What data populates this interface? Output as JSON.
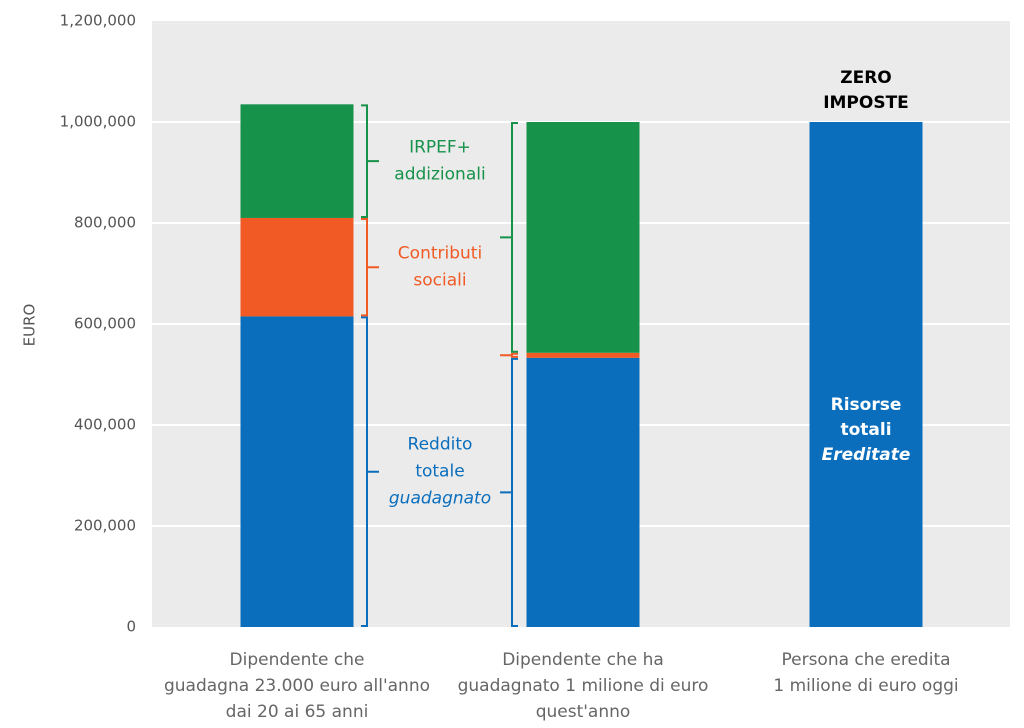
{
  "chart_data": {
    "type": "stacked_bar",
    "y_label": "EURO",
    "categories": [
      [
        "Dipendente che",
        "guadagna 23.000 euro all'anno",
        "dai 20 ai 65 anni"
      ],
      [
        "Dipendente che ha",
        "guadagnato 1 milione di euro",
        "quest'anno"
      ],
      [
        "Persona che eredita",
        "1 milione di euro oggi"
      ]
    ],
    "series": [
      {
        "color": "#0a6ebd",
        "values": [
          615000,
          533000,
          1000000
        ],
        "label_lines": [
          "Reddito",
          "totale",
          "guadagnato"
        ],
        "italic_last": true
      },
      {
        "color": "#f15a24",
        "values": [
          195000,
          10000,
          null
        ],
        "label_lines": [
          "Contributi",
          "sociali"
        ],
        "italic_last": false
      },
      {
        "color": "#16924a",
        "values": [
          225000,
          457000,
          null
        ],
        "label_lines": [
          "IRPEF+",
          "addizionali"
        ],
        "italic_last": false
      }
    ],
    "bar_annotation": {
      "above": [
        "ZERO",
        "IMPOSTE"
      ],
      "inside": [
        "Risorse",
        "totali",
        "Ereditate"
      ],
      "italic_last": true
    },
    "ylim": [
      0,
      1200000
    ],
    "yticks": [
      0,
      {
        "value": 200000,
        "label": "200,000"
      },
      {
        "value": 400000,
        "label": "400,000"
      },
      {
        "value": 600000,
        "label": "600,000"
      },
      {
        "value": 800000,
        "label": "800,000"
      },
      {
        "value": 1000000,
        "label": "1,000,000"
      },
      {
        "value": 1200000,
        "label": "1,200,000"
      }
    ],
    "grid": true
  }
}
